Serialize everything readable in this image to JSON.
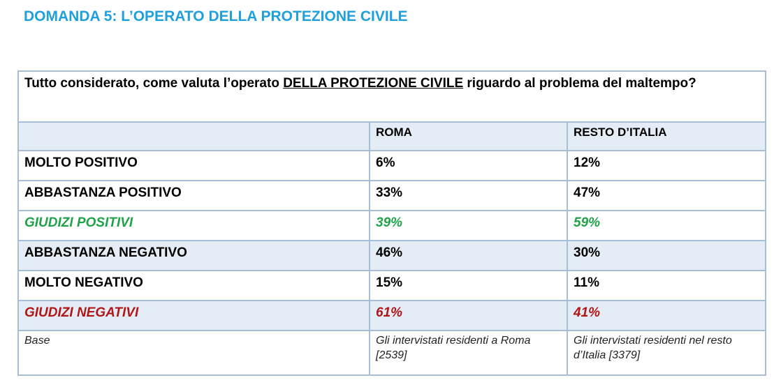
{
  "title": "DOMANDA 5: L’OPERATO DELLA PROTEZIONE CIVILE",
  "question": {
    "before": "Tutto considerato, come valuta l’operato ",
    "underlined": "DELLA PROTEZIONE CIVILE",
    "after": " riguardo al problema del maltempo?"
  },
  "columns": [
    "",
    "ROMA",
    "RESTO D’ITALIA"
  ],
  "rows": [
    {
      "label": "MOLTO POSITIVO",
      "roma": "6%",
      "resto": "12%"
    },
    {
      "label": "ABBASTANZA POSITIVO",
      "roma": "33%",
      "resto": "47%"
    },
    {
      "label": "GIUDIZI POSITIVI",
      "roma": "39%",
      "resto": "59%"
    },
    {
      "label": "ABBASTANZA NEGATIVO",
      "roma": "46%",
      "resto": "30%"
    },
    {
      "label": "MOLTO NEGATIVO",
      "roma": "15%",
      "resto": "11%"
    },
    {
      "label": "GIUDIZI NEGATIVI",
      "roma": "61%",
      "resto": "41%"
    }
  ],
  "base": {
    "label": "Base",
    "roma": "Gli intervistati residenti a Roma [2539]",
    "resto": "Gli intervistati residenti nel resto d’Italia [3379]"
  },
  "colors": {
    "title": "#1fa0dc",
    "positive": "#1fa34a",
    "negative": "#b11616",
    "header_fill": "#e4ecf5",
    "border": "#a7bfd6"
  }
}
